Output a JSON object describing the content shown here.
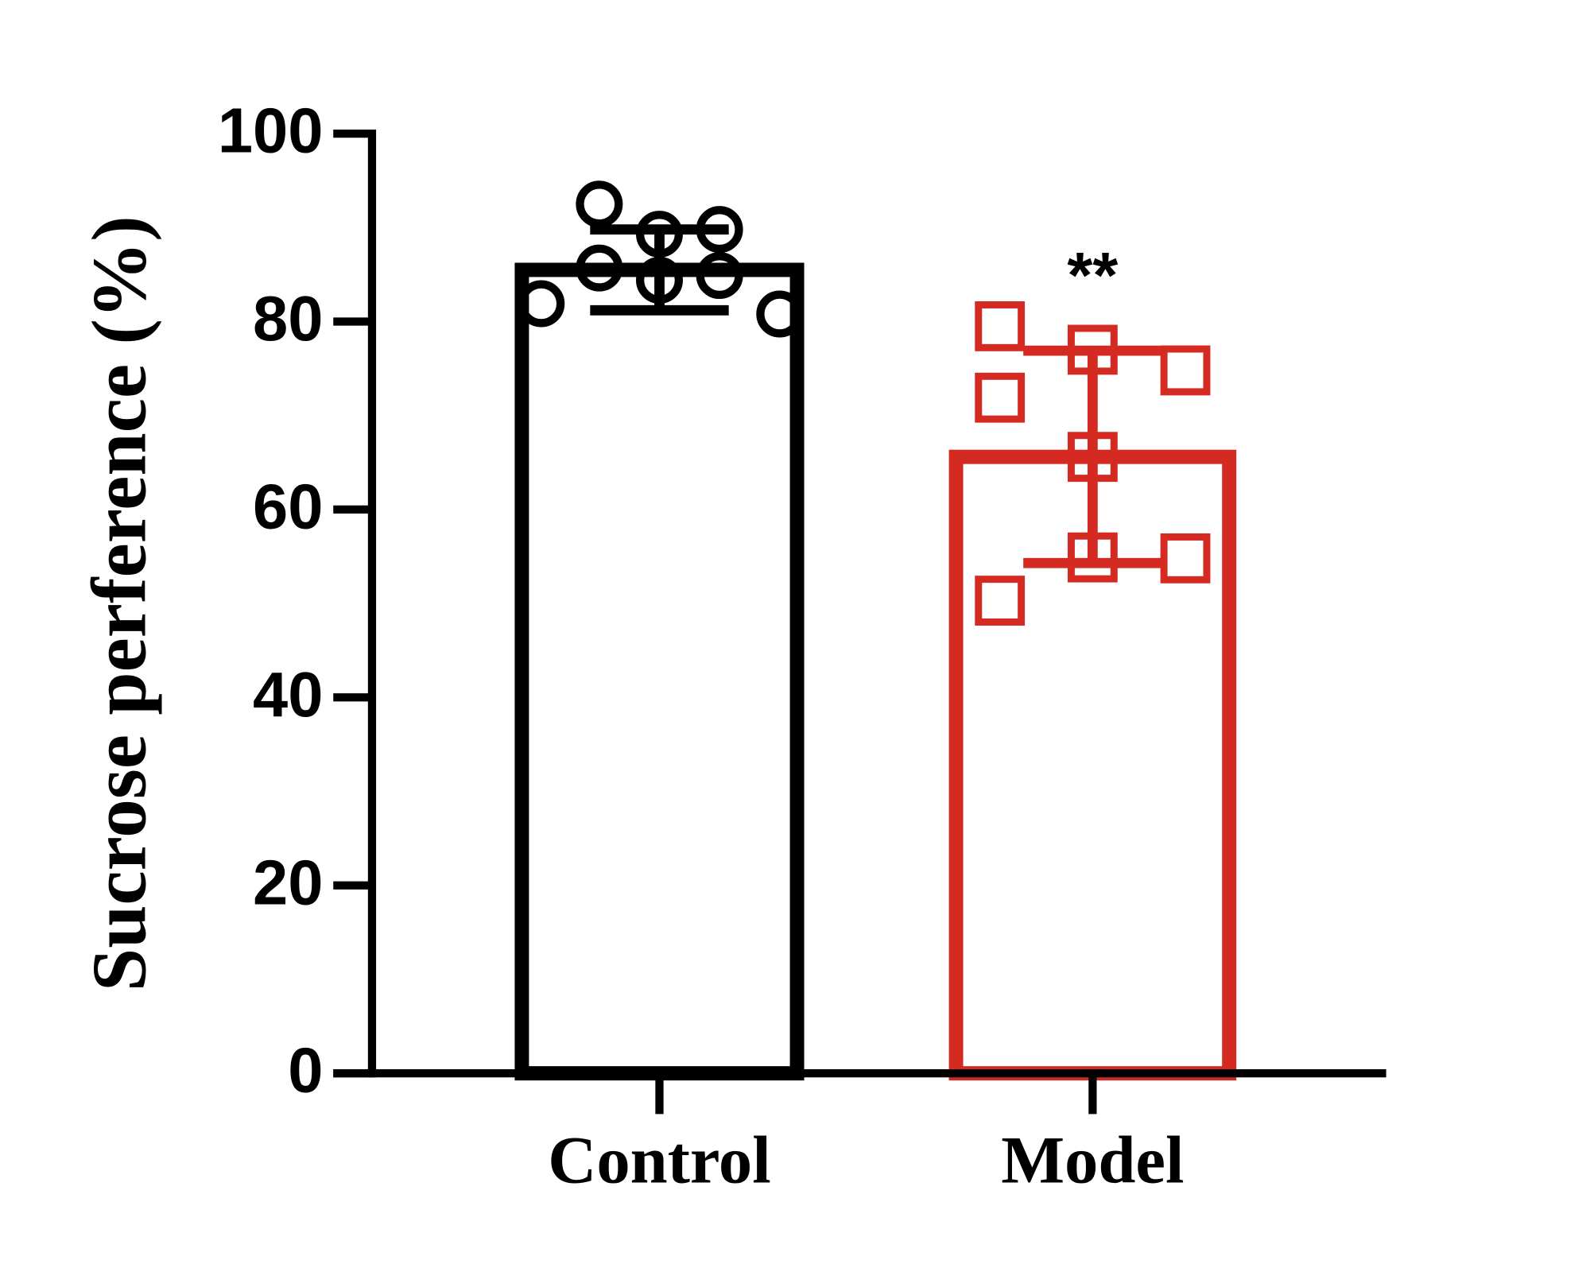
{
  "chart_data": {
    "type": "bar",
    "y_label": "Sucrose perference (%)",
    "categories": [
      "Control",
      "Model"
    ],
    "values": [
      85.5,
      65.6
    ],
    "errors": [
      4.3,
      11.3
    ],
    "colors": [
      "#000000",
      "#d42a22"
    ],
    "markers": [
      "circle",
      "square"
    ],
    "points": [
      [
        81.9,
        92.5,
        85.7,
        89.3,
        84.4,
        89.8,
        84.9,
        80.8
      ],
      [
        79.5,
        71.9,
        50.3,
        77.0,
        65.6,
        54.9,
        74.8,
        54.8
      ]
    ],
    "value_annotations": [
      null,
      "**"
    ],
    "ylim": [
      0,
      100
    ],
    "yticks": [
      0,
      20,
      40,
      60,
      80,
      100
    ]
  }
}
